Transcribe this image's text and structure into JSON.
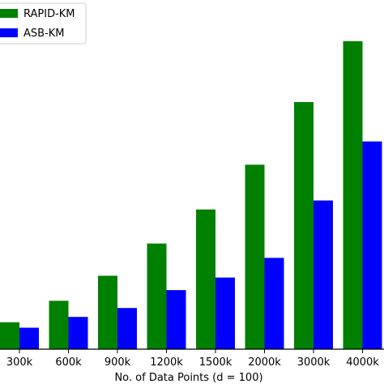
{
  "chart_data": {
    "type": "bar",
    "title": "",
    "xlabel": "No. of Data Points (d = 100)",
    "ylabel": "",
    "categories": [
      "300k",
      "600k",
      "900k",
      "1200k",
      "1500k",
      "2000k",
      "3000k",
      "4000k"
    ],
    "series": [
      {
        "name": "RAPID-KM",
        "color": "#008000",
        "values": [
          1.5,
          2.7,
          4.1,
          5.9,
          7.8,
          10.3,
          13.8,
          17.2
        ]
      },
      {
        "name": "ASB-KM",
        "color": "#0000ff",
        "values": [
          1.2,
          1.8,
          2.3,
          3.3,
          4.0,
          5.1,
          8.3,
          11.6
        ]
      }
    ],
    "ylim": [
      0,
      19.5
    ],
    "grid": false,
    "legend": "upper-left"
  }
}
